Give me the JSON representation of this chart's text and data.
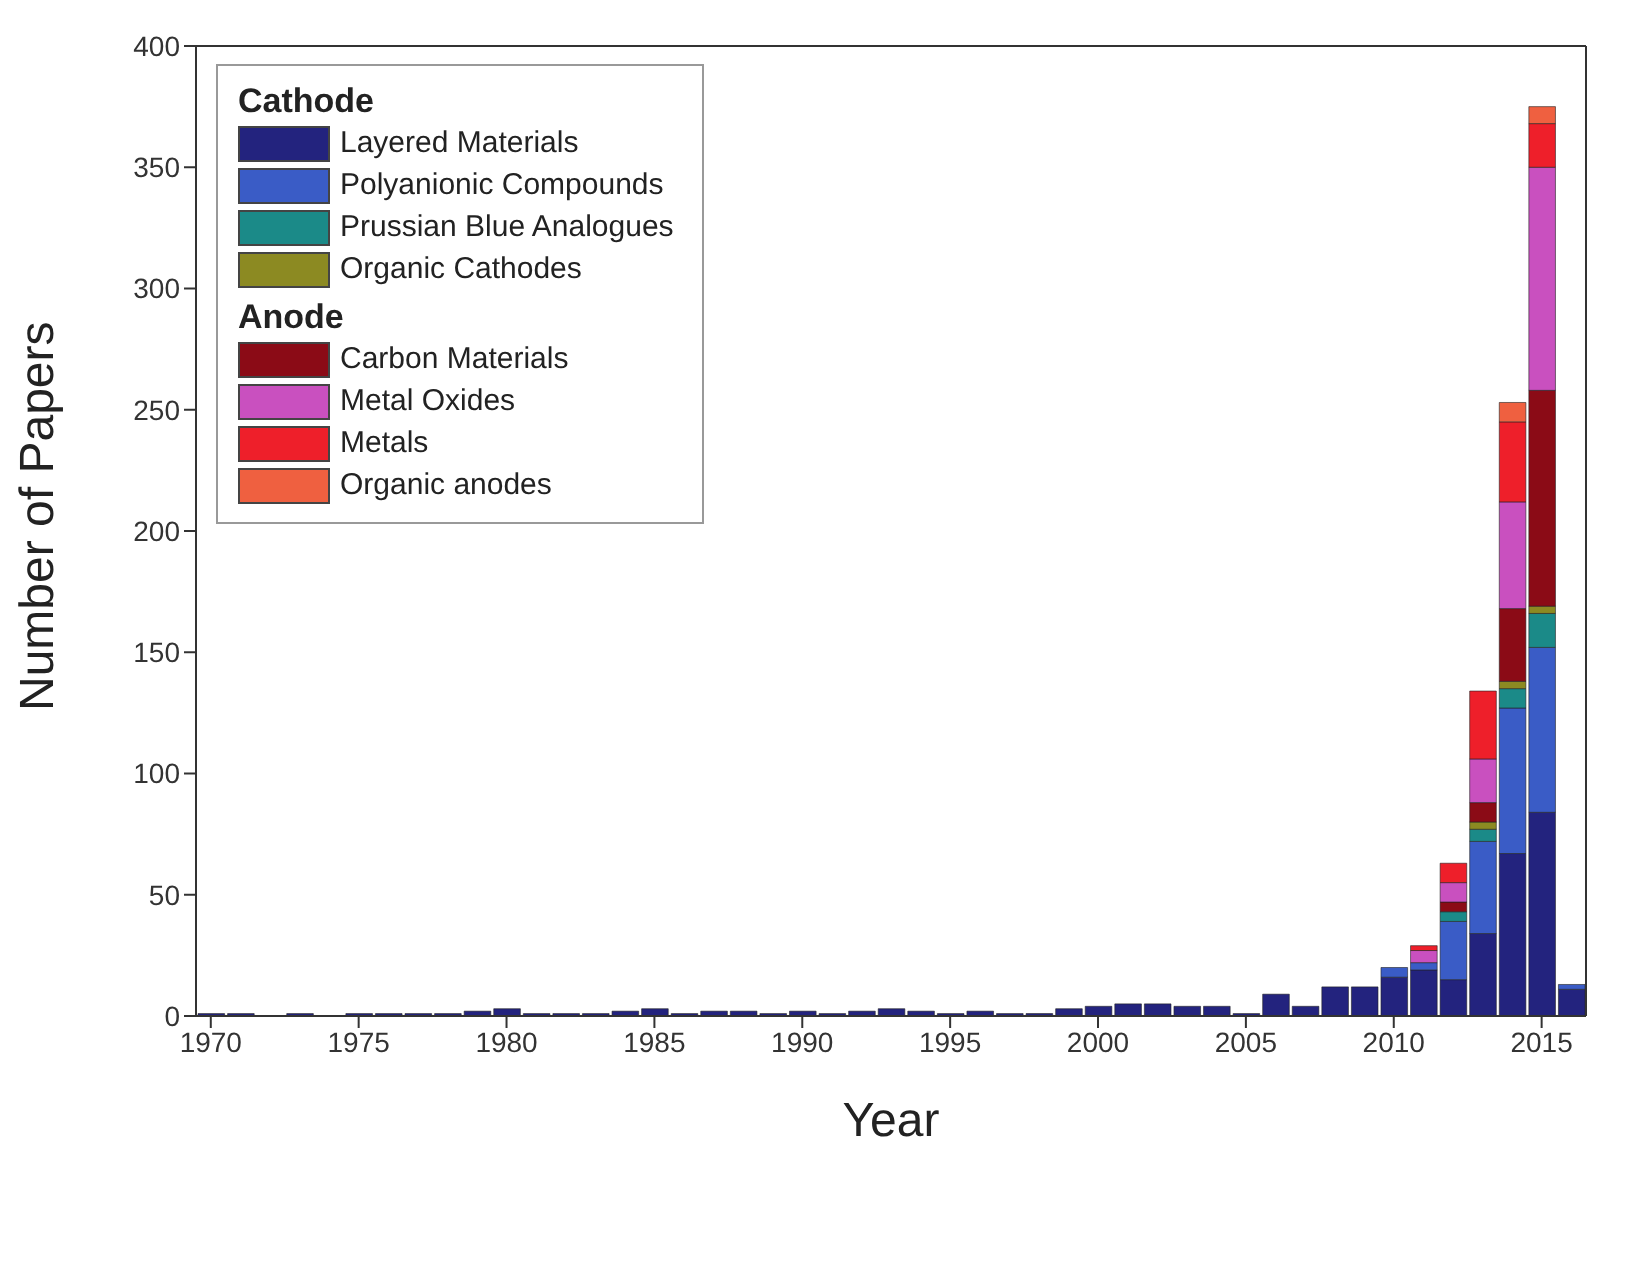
{
  "chart_data": {
    "type": "bar",
    "stacked": true,
    "xlabel": "Year",
    "ylabel": "Number of Papers",
    "x": [
      1970,
      1971,
      1972,
      1973,
      1974,
      1975,
      1976,
      1977,
      1978,
      1979,
      1980,
      1981,
      1982,
      1983,
      1984,
      1985,
      1986,
      1987,
      1988,
      1989,
      1990,
      1991,
      1992,
      1993,
      1994,
      1995,
      1996,
      1997,
      1998,
      1999,
      2000,
      2001,
      2002,
      2003,
      2004,
      2005,
      2006,
      2007,
      2008,
      2009,
      2010,
      2011,
      2012,
      2013,
      2014,
      2015,
      2016
    ],
    "xlim": [
      1969.5,
      2016.5
    ],
    "xticks": [
      1970,
      1975,
      1980,
      1985,
      1990,
      1995,
      2000,
      2005,
      2010,
      2015
    ],
    "ylim": [
      0,
      400
    ],
    "yticks": [
      0,
      50,
      100,
      150,
      200,
      250,
      300,
      350,
      400
    ],
    "grid": false,
    "legend": "top left",
    "annotations": [
      "Cathode",
      "Anode"
    ],
    "series": [
      {
        "name": "Layered Materials",
        "color": "#23237e",
        "values": [
          1,
          1,
          0,
          1,
          0,
          1,
          1,
          1,
          1,
          2,
          3,
          1,
          1,
          1,
          2,
          3,
          1,
          2,
          2,
          1,
          2,
          1,
          2,
          3,
          2,
          1,
          2,
          1,
          1,
          3,
          4,
          5,
          5,
          4,
          4,
          1,
          9,
          4,
          12,
          12,
          16,
          19,
          15,
          34,
          67,
          84,
          11
        ]
      },
      {
        "name": "Polyanionic Compounds",
        "color": "#3a5cc6",
        "values": [
          0,
          0,
          0,
          0,
          0,
          0,
          0,
          0,
          0,
          0,
          0,
          0,
          0,
          0,
          0,
          0,
          0,
          0,
          0,
          0,
          0,
          0,
          0,
          0,
          0,
          0,
          0,
          0,
          0,
          0,
          0,
          0,
          0,
          0,
          0,
          0,
          0,
          0,
          0,
          0,
          4,
          3,
          24,
          38,
          60,
          68,
          2
        ]
      },
      {
        "name": "Prussian Blue Analogues",
        "color": "#1b8a88",
        "values": [
          0,
          0,
          0,
          0,
          0,
          0,
          0,
          0,
          0,
          0,
          0,
          0,
          0,
          0,
          0,
          0,
          0,
          0,
          0,
          0,
          0,
          0,
          0,
          0,
          0,
          0,
          0,
          0,
          0,
          0,
          0,
          0,
          0,
          0,
          0,
          0,
          0,
          0,
          0,
          0,
          0,
          0,
          4,
          5,
          8,
          14,
          0
        ]
      },
      {
        "name": "Organic Cathodes",
        "color": "#8c8a22",
        "values": [
          0,
          0,
          0,
          0,
          0,
          0,
          0,
          0,
          0,
          0,
          0,
          0,
          0,
          0,
          0,
          0,
          0,
          0,
          0,
          0,
          0,
          0,
          0,
          0,
          0,
          0,
          0,
          0,
          0,
          0,
          0,
          0,
          0,
          0,
          0,
          0,
          0,
          0,
          0,
          0,
          0,
          0,
          0,
          3,
          3,
          3,
          0
        ]
      },
      {
        "name": "Carbon Materials",
        "color": "#8b0b16",
        "values": [
          0,
          0,
          0,
          0,
          0,
          0,
          0,
          0,
          0,
          0,
          0,
          0,
          0,
          0,
          0,
          0,
          0,
          0,
          0,
          0,
          0,
          0,
          0,
          0,
          0,
          0,
          0,
          0,
          0,
          0,
          0,
          0,
          0,
          0,
          0,
          0,
          0,
          0,
          0,
          0,
          0,
          0,
          4,
          8,
          30,
          89,
          0
        ]
      },
      {
        "name": "Metal Oxides",
        "color": "#c950bf",
        "values": [
          0,
          0,
          0,
          0,
          0,
          0,
          0,
          0,
          0,
          0,
          0,
          0,
          0,
          0,
          0,
          0,
          0,
          0,
          0,
          0,
          0,
          0,
          0,
          0,
          0,
          0,
          0,
          0,
          0,
          0,
          0,
          0,
          0,
          0,
          0,
          0,
          0,
          0,
          0,
          0,
          0,
          5,
          8,
          18,
          44,
          92,
          0
        ]
      },
      {
        "name": "Metals",
        "color": "#ee1f2a",
        "values": [
          0,
          0,
          0,
          0,
          0,
          0,
          0,
          0,
          0,
          0,
          0,
          0,
          0,
          0,
          0,
          0,
          0,
          0,
          0,
          0,
          0,
          0,
          0,
          0,
          0,
          0,
          0,
          0,
          0,
          0,
          0,
          0,
          0,
          0,
          0,
          0,
          0,
          0,
          0,
          0,
          0,
          2,
          8,
          28,
          33,
          18,
          0
        ]
      },
      {
        "name": "Organic anodes",
        "color": "#ef6040",
        "values": [
          0,
          0,
          0,
          0,
          0,
          0,
          0,
          0,
          0,
          0,
          0,
          0,
          0,
          0,
          0,
          0,
          0,
          0,
          0,
          0,
          0,
          0,
          0,
          0,
          0,
          0,
          0,
          0,
          0,
          0,
          0,
          0,
          0,
          0,
          0,
          0,
          0,
          0,
          0,
          0,
          0,
          0,
          0,
          0,
          8,
          7,
          0
        ]
      }
    ]
  }
}
